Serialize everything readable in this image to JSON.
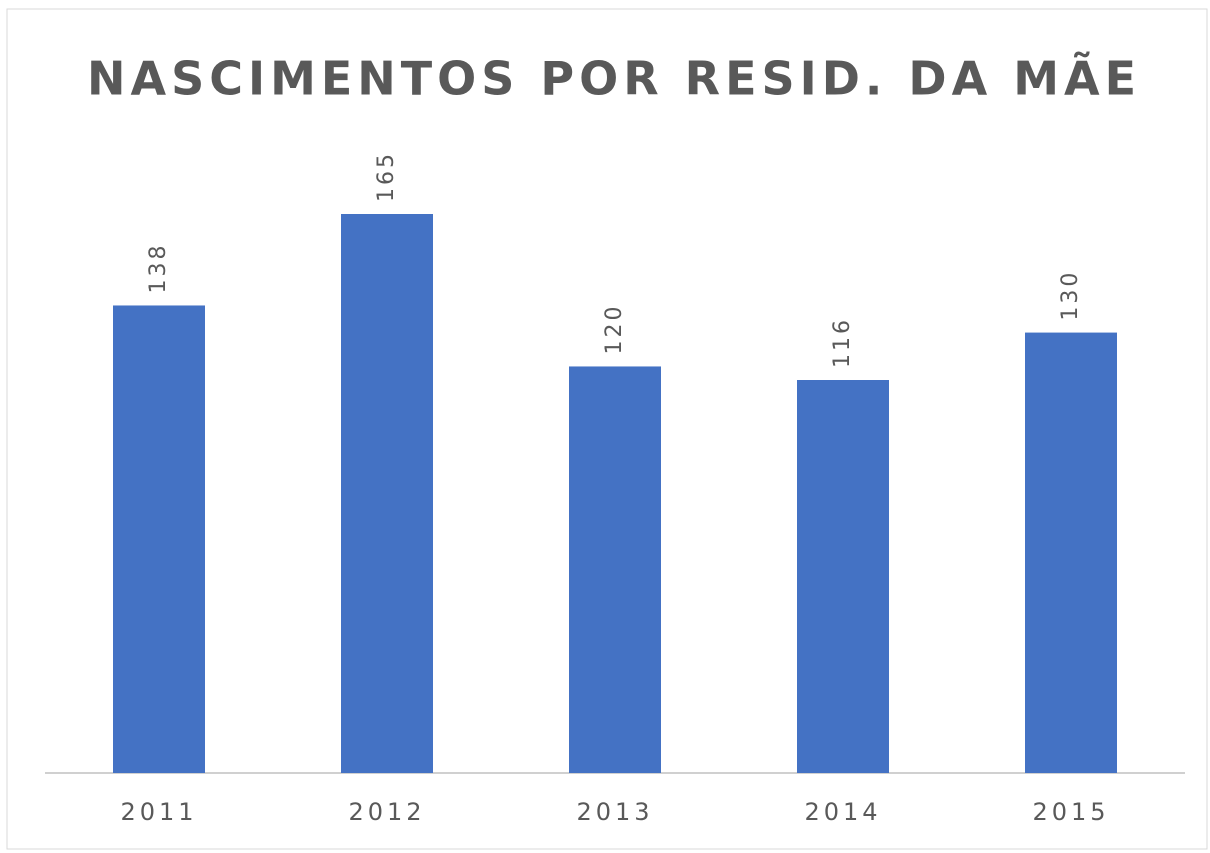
{
  "chart_data": {
    "type": "bar",
    "title": "NASCIMENTOS POR RESID. DA MÃE",
    "categories": [
      "2011",
      "2012",
      "2013",
      "2014",
      "2015"
    ],
    "values": [
      138,
      165,
      120,
      116,
      130
    ],
    "color": "#4472c4"
  }
}
